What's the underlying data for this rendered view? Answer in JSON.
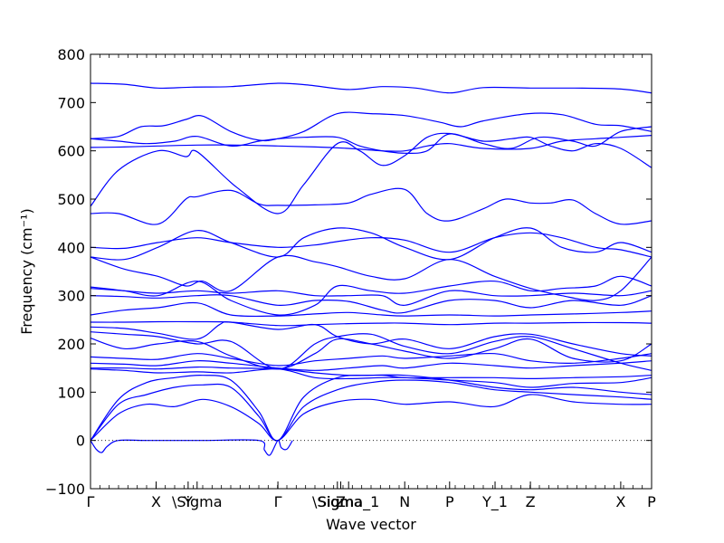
{
  "chart_data": {
    "type": "line",
    "xlabel": "Wave vector",
    "ylabel": "Frequency (cm⁻¹)",
    "ylim": [
      -100,
      800
    ],
    "yticks": [
      "−100",
      "0",
      "100",
      "200",
      "300",
      "400",
      "500",
      "600",
      "700",
      "800"
    ],
    "ytick_values": [
      -100,
      0,
      100,
      200,
      300,
      400,
      500,
      600,
      700,
      800
    ],
    "xlim": [
      0,
      1.0
    ],
    "xticks": [
      {
        "label": "Γ",
        "pos": 0.0
      },
      {
        "label": "X",
        "pos": 0.117
      },
      {
        "label": "Y",
        "pos": 0.174
      },
      {
        "label": "\\Sigma",
        "pos": 0.19
      },
      {
        "label": "Γ",
        "pos": 0.334
      },
      {
        "label": "\\Sigma",
        "pos": 0.44
      },
      {
        "label": "Z",
        "pos": 0.446
      },
      {
        "label": "Sigma_1",
        "pos": 0.46
      },
      {
        "label": "N",
        "pos": 0.56
      },
      {
        "label": "P",
        "pos": 0.64
      },
      {
        "label": "Y_1",
        "pos": 0.721
      },
      {
        "label": "Z",
        "pos": 0.784
      },
      {
        "label": "X",
        "pos": 0.945
      },
      {
        "label": "P",
        "pos": 1.0
      }
    ],
    "zero_line": {
      "y": 0,
      "style": "dotted"
    },
    "line_color": "#0000ff",
    "series": [
      {
        "x": [
          0,
          0.06,
          0.12,
          0.18,
          0.25,
          0.334,
          0.39,
          0.46,
          0.52,
          0.58,
          0.64,
          0.7,
          0.784,
          0.86,
          0.945,
          1.0
        ],
        "y": [
          740,
          738,
          730,
          732,
          733,
          740,
          736,
          727,
          733,
          730,
          720,
          731,
          730,
          730,
          728,
          720
        ]
      },
      {
        "x": [
          0,
          0.05,
          0.09,
          0.13,
          0.17,
          0.2,
          0.25,
          0.3,
          0.334,
          0.38,
          0.44,
          0.5,
          0.56,
          0.62,
          0.66,
          0.7,
          0.78,
          0.84,
          0.9,
          0.945,
          1.0
        ],
        "y": [
          625,
          630,
          650,
          652,
          665,
          672,
          640,
          622,
          625,
          640,
          677,
          677,
          673,
          660,
          650,
          662,
          677,
          675,
          655,
          652,
          640
        ]
      },
      {
        "x": [
          0,
          0.05,
          0.1,
          0.15,
          0.19,
          0.25,
          0.3,
          0.334,
          0.38,
          0.44,
          0.48,
          0.52,
          0.56,
          0.6,
          0.64,
          0.7,
          0.75,
          0.8,
          0.86,
          0.9,
          0.945,
          1.0
        ],
        "y": [
          625,
          620,
          615,
          620,
          630,
          610,
          620,
          625,
          628,
          628,
          610,
          600,
          595,
          600,
          635,
          615,
          605,
          628,
          620,
          610,
          640,
          650
        ]
      },
      {
        "x": [
          0,
          0.06,
          0.12,
          0.19,
          0.26,
          0.334,
          0.4,
          0.46,
          0.52,
          0.56,
          0.6,
          0.64,
          0.7,
          0.784,
          0.84,
          0.9,
          0.945,
          1.0
        ],
        "y": [
          607,
          608,
          610,
          612,
          612,
          610,
          608,
          605,
          600,
          600,
          610,
          615,
          605,
          605,
          620,
          625,
          628,
          632
        ]
      },
      {
        "x": [
          0,
          0.05,
          0.12,
          0.17,
          0.19,
          0.26,
          0.334,
          0.38,
          0.44,
          0.48,
          0.52,
          0.56,
          0.6,
          0.64,
          0.7,
          0.75,
          0.784,
          0.82,
          0.86,
          0.9,
          0.945,
          1.0
        ],
        "y": [
          485,
          560,
          600,
          588,
          598,
          525,
          470,
          530,
          615,
          600,
          570,
          590,
          628,
          636,
          620,
          625,
          628,
          610,
          600,
          615,
          605,
          565
        ]
      },
      {
        "x": [
          0,
          0.05,
          0.12,
          0.17,
          0.19,
          0.25,
          0.3,
          0.334,
          0.4,
          0.46,
          0.5,
          0.56,
          0.6,
          0.64,
          0.7,
          0.74,
          0.784,
          0.82,
          0.86,
          0.9,
          0.945,
          1.0
        ],
        "y": [
          470,
          470,
          448,
          500,
          505,
          518,
          490,
          487,
          488,
          492,
          510,
          520,
          470,
          455,
          480,
          500,
          492,
          492,
          498,
          470,
          448,
          455
        ]
      },
      {
        "x": [
          0,
          0.06,
          0.12,
          0.19,
          0.25,
          0.334,
          0.4,
          0.44,
          0.5,
          0.56,
          0.64,
          0.72,
          0.784,
          0.84,
          0.9,
          0.945,
          1.0
        ],
        "y": [
          400,
          398,
          410,
          420,
          410,
          400,
          405,
          412,
          420,
          415,
          390,
          420,
          430,
          420,
          400,
          395,
          380
        ]
      },
      {
        "x": [
          0,
          0.06,
          0.12,
          0.19,
          0.25,
          0.334,
          0.38,
          0.44,
          0.5,
          0.56,
          0.64,
          0.72,
          0.784,
          0.84,
          0.9,
          0.945,
          1.0
        ],
        "y": [
          380,
          375,
          400,
          435,
          410,
          380,
          420,
          440,
          430,
          400,
          375,
          420,
          440,
          400,
          390,
          410,
          390
        ]
      },
      {
        "x": [
          0,
          0.06,
          0.12,
          0.17,
          0.2,
          0.25,
          0.334,
          0.4,
          0.44,
          0.5,
          0.56,
          0.64,
          0.72,
          0.784,
          0.84,
          0.9,
          0.945,
          1.0
        ],
        "y": [
          380,
          355,
          340,
          320,
          330,
          310,
          380,
          370,
          360,
          340,
          335,
          375,
          340,
          315,
          300,
          290,
          310,
          380
        ]
      },
      {
        "x": [
          0,
          0.06,
          0.12,
          0.19,
          0.25,
          0.334,
          0.4,
          0.44,
          0.5,
          0.56,
          0.64,
          0.72,
          0.784,
          0.84,
          0.9,
          0.945,
          1.0
        ],
        "y": [
          318,
          310,
          300,
          330,
          290,
          260,
          280,
          320,
          310,
          305,
          320,
          330,
          310,
          315,
          320,
          340,
          320
        ]
      },
      {
        "x": [
          0,
          0.06,
          0.12,
          0.19,
          0.25,
          0.334,
          0.4,
          0.46,
          0.52,
          0.56,
          0.64,
          0.72,
          0.784,
          0.86,
          0.945,
          1.0
        ],
        "y": [
          315,
          310,
          305,
          310,
          305,
          310,
          300,
          300,
          300,
          280,
          310,
          300,
          300,
          305,
          300,
          310
        ]
      },
      {
        "x": [
          0,
          0.06,
          0.12,
          0.19,
          0.25,
          0.334,
          0.4,
          0.46,
          0.52,
          0.56,
          0.64,
          0.72,
          0.784,
          0.86,
          0.945,
          1.0
        ],
        "y": [
          300,
          298,
          295,
          300,
          300,
          280,
          290,
          288,
          270,
          265,
          290,
          290,
          275,
          290,
          280,
          300
        ]
      },
      {
        "x": [
          0,
          0.06,
          0.12,
          0.19,
          0.25,
          0.334,
          0.4,
          0.46,
          0.52,
          0.56,
          0.64,
          0.72,
          0.784,
          0.86,
          0.945,
          1.0
        ],
        "y": [
          260,
          270,
          275,
          285,
          260,
          258,
          262,
          265,
          260,
          258,
          260,
          258,
          260,
          262,
          265,
          268
        ]
      },
      {
        "x": [
          0,
          0.06,
          0.12,
          0.19,
          0.25,
          0.334,
          0.4,
          0.46,
          0.52,
          0.56,
          0.64,
          0.72,
          0.784,
          0.86,
          0.945,
          1.0
        ],
        "y": [
          245,
          245,
          246,
          246,
          245,
          238,
          240,
          242,
          243,
          243,
          240,
          243,
          243,
          244,
          244,
          243
        ]
      },
      {
        "x": [
          0,
          0.06,
          0.12,
          0.19,
          0.23,
          0.25,
          0.334,
          0.4,
          0.44,
          0.5,
          0.56,
          0.64,
          0.72,
          0.784,
          0.86,
          0.945,
          1.0
        ],
        "y": [
          235,
          232,
          222,
          210,
          240,
          245,
          230,
          240,
          215,
          200,
          210,
          190,
          215,
          220,
          200,
          180,
          175
        ]
      },
      {
        "x": [
          0,
          0.06,
          0.12,
          0.19,
          0.25,
          0.334,
          0.4,
          0.44,
          0.5,
          0.56,
          0.64,
          0.72,
          0.784,
          0.86,
          0.945,
          1.0
        ],
        "y": [
          225,
          220,
          215,
          200,
          205,
          148,
          200,
          215,
          220,
          195,
          180,
          205,
          215,
          190,
          160,
          145
        ]
      },
      {
        "x": [
          0,
          0.06,
          0.12,
          0.19,
          0.25,
          0.334,
          0.4,
          0.44,
          0.5,
          0.56,
          0.64,
          0.72,
          0.784,
          0.86,
          0.945,
          1.0
        ],
        "y": [
          212,
          190,
          200,
          205,
          175,
          148,
          180,
          210,
          200,
          185,
          170,
          190,
          210,
          170,
          165,
          200
        ]
      },
      {
        "x": [
          0,
          0.06,
          0.12,
          0.19,
          0.25,
          0.334,
          0.4,
          0.46,
          0.52,
          0.56,
          0.64,
          0.72,
          0.784,
          0.86,
          0.945,
          1.0
        ],
        "y": [
          173,
          170,
          168,
          180,
          170,
          155,
          165,
          170,
          175,
          170,
          175,
          180,
          165,
          160,
          170,
          180
        ]
      },
      {
        "x": [
          0,
          0.06,
          0.12,
          0.19,
          0.25,
          0.334,
          0.4,
          0.46,
          0.52,
          0.56,
          0.64,
          0.72,
          0.784,
          0.86,
          0.945,
          1.0
        ],
        "y": [
          160,
          158,
          155,
          165,
          160,
          150,
          145,
          150,
          155,
          150,
          160,
          155,
          150,
          155,
          160,
          165
        ]
      },
      {
        "x": [
          0,
          0.06,
          0.12,
          0.19,
          0.25,
          0.334,
          0.4,
          0.46,
          0.52,
          0.56,
          0.64,
          0.72,
          0.784,
          0.86,
          0.945,
          1.0
        ],
        "y": [
          150,
          150,
          148,
          152,
          150,
          148,
          140,
          135,
          135,
          130,
          130,
          130,
          128,
          130,
          132,
          135
        ]
      },
      {
        "x": [
          0,
          0.06,
          0.12,
          0.19,
          0.25,
          0.334,
          0.4,
          0.46,
          0.52,
          0.56,
          0.64,
          0.72,
          0.784,
          0.86,
          0.945,
          1.0
        ],
        "y": [
          148,
          145,
          140,
          142,
          140,
          148,
          130,
          128,
          130,
          130,
          125,
          120,
          110,
          118,
          120,
          130
        ]
      },
      {
        "x": [
          0,
          0.05,
          0.1,
          0.15,
          0.2,
          0.25,
          0.3,
          0.334,
          0.38,
          0.44,
          0.5,
          0.56,
          0.64,
          0.72,
          0.784,
          0.86,
          0.945,
          1.0
        ],
        "y": [
          0,
          85,
          120,
          130,
          135,
          125,
          60,
          0,
          90,
          130,
          135,
          135,
          125,
          110,
          105,
          110,
          100,
          95
        ]
      },
      {
        "x": [
          0,
          0.05,
          0.1,
          0.15,
          0.2,
          0.25,
          0.3,
          0.334,
          0.38,
          0.44,
          0.5,
          0.56,
          0.64,
          0.72,
          0.784,
          0.86,
          0.945,
          1.0
        ],
        "y": [
          0,
          75,
          95,
          110,
          115,
          110,
          50,
          0,
          70,
          105,
          120,
          125,
          120,
          105,
          100,
          95,
          90,
          85
        ]
      },
      {
        "x": [
          0,
          0.05,
          0.1,
          0.15,
          0.2,
          0.25,
          0.3,
          0.334,
          0.38,
          0.44,
          0.5,
          0.56,
          0.64,
          0.72,
          0.784,
          0.86,
          0.945,
          1.0
        ],
        "y": [
          0,
          55,
          75,
          70,
          85,
          70,
          35,
          0,
          55,
          80,
          85,
          75,
          80,
          70,
          95,
          80,
          75,
          75
        ]
      },
      {
        "x": [
          0,
          0.01,
          0.02,
          0.03,
          0.05,
          0.1,
          0.2,
          0.3,
          0.31,
          0.32,
          0.334,
          0.34,
          0.35,
          0.36
        ],
        "y": [
          0,
          -18,
          -25,
          -12,
          0,
          0,
          0,
          0,
          -20,
          -30,
          0,
          -15,
          -18,
          0
        ]
      }
    ]
  }
}
